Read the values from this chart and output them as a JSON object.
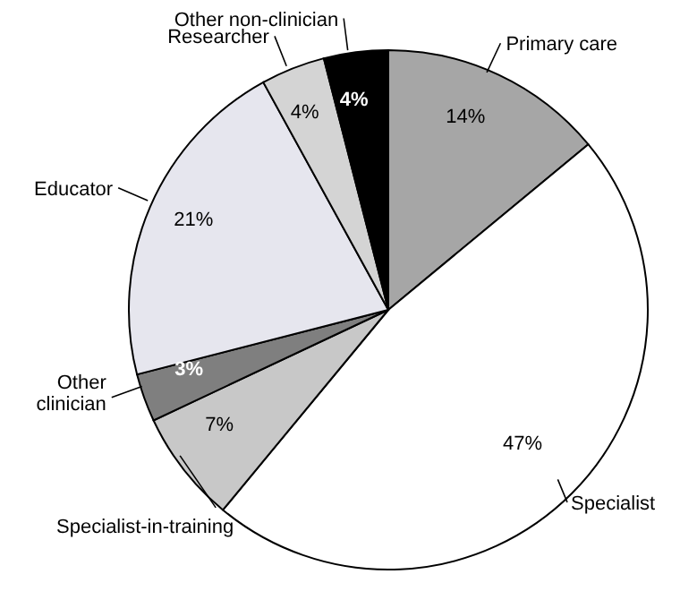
{
  "chart_data": {
    "type": "pie",
    "categories": [
      "Primary care",
      "Specialist",
      "Specialist-in-training",
      "Other clinician",
      "Educator",
      "Researcher",
      "Other non-clinician"
    ],
    "values": [
      14,
      47,
      7,
      3,
      21,
      4,
      4
    ],
    "value_labels": [
      "14%",
      "47%",
      "7%",
      "3%",
      "21%",
      "4%",
      "4%"
    ],
    "colors": [
      "#a6a6a6",
      "#ffffff",
      "#c8c8c8",
      "#7f7f7f",
      "#e6e6ee",
      "#d4d4d4",
      "#000000"
    ]
  }
}
